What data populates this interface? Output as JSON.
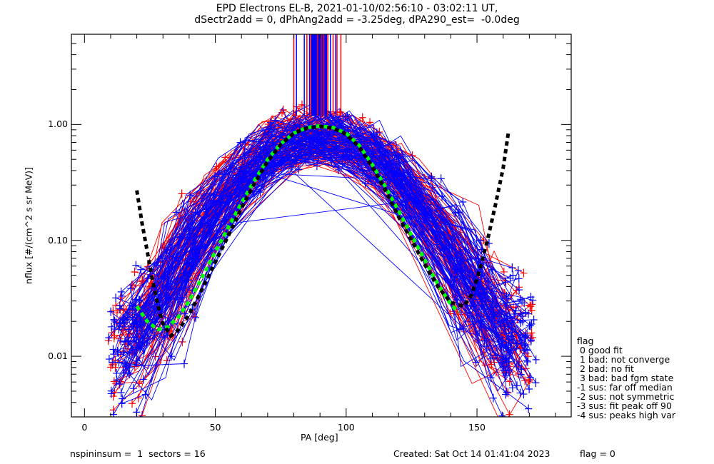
{
  "title_line1": "EPD Electrons EL-B, 2021-01-10/02:56:10 - 03:02:11 UT,",
  "title_line2": "dSectr2add = 0, dPhAng2add = -3.25deg, dPA290_est=  -0.0deg",
  "footer": {
    "left": "nspininsum =  1  sectors = 16",
    "right": "Created: Sat Oct 14 01:41:04 2023",
    "flag_value": "flag = 0"
  },
  "legend": {
    "title": "flag",
    "entries": [
      " 0 good fit",
      " 1 bad: not converge",
      " 2 bad: no fit",
      " 3 bad: bad fgm state",
      "-1 sus: far off median",
      "-2 sus: not symmetric",
      "-3 sus: fit peak off 90",
      "-4 sus: peaks high var"
    ]
  },
  "colors": {
    "red_traces": "#ff0000",
    "blue_traces": "#0000ff",
    "green_fit": "#00ff00",
    "black_fit": "#000000",
    "axes": "#000000"
  },
  "chart_data": {
    "type": "line",
    "title": "EPD Electrons EL-B, 2021-01-10/02:56:10 - 03:02:11 UT, dSectr2add = 0, dPhAng2add = -3.25deg, dPA290_est=  -0.0deg",
    "xlabel": "PA [deg]",
    "ylabel": "nflux [#/(cm^2 s sr MeV)]",
    "xlim": [
      -5,
      186
    ],
    "ylim": [
      0.003,
      6.0
    ],
    "yscale": "log",
    "x_ticks": [
      0,
      50,
      100,
      150
    ],
    "x_tick_labels": [
      "0",
      "50",
      "100",
      "150"
    ],
    "x_minor_step": 10,
    "y_ticks": [
      0.01,
      0.1,
      1.0
    ],
    "y_tick_labels": [
      "0.01",
      "0.10",
      "1.00"
    ],
    "grid": false,
    "series": [
      {
        "name": "green-fit",
        "style": "dashed-thick",
        "x": [
          20,
          24,
          28,
          32,
          36,
          40,
          45,
          50,
          55,
          60,
          65,
          70,
          75,
          80,
          85,
          90,
          95,
          100,
          105,
          110,
          115,
          120,
          125,
          130,
          135,
          140,
          143
        ],
        "y": [
          0.027,
          0.02,
          0.017,
          0.018,
          0.022,
          0.03,
          0.048,
          0.08,
          0.13,
          0.21,
          0.33,
          0.5,
          0.68,
          0.84,
          0.94,
          0.97,
          0.94,
          0.84,
          0.66,
          0.45,
          0.29,
          0.18,
          0.11,
          0.068,
          0.042,
          0.028,
          0.024
        ]
      },
      {
        "name": "black-fit",
        "style": "dashed-thick",
        "x": [
          20,
          22,
          24,
          26,
          28,
          30,
          33,
          36,
          40,
          45,
          50,
          55,
          60,
          65,
          70,
          75,
          80,
          85,
          90,
          95,
          100,
          105,
          110,
          115,
          120,
          125,
          130,
          135,
          140,
          145,
          148,
          151,
          154,
          157,
          160,
          162
        ],
        "y": [
          0.27,
          0.14,
          0.08,
          0.045,
          0.028,
          0.019,
          0.015,
          0.017,
          0.023,
          0.038,
          0.065,
          0.11,
          0.19,
          0.31,
          0.48,
          0.67,
          0.84,
          0.93,
          0.96,
          0.93,
          0.82,
          0.64,
          0.43,
          0.27,
          0.16,
          0.1,
          0.062,
          0.04,
          0.029,
          0.027,
          0.034,
          0.055,
          0.1,
          0.2,
          0.42,
          0.85
        ]
      }
    ],
    "trace_groups": [
      {
        "name": "red-traces",
        "color": "red",
        "count": 90,
        "peak_level": 0.88,
        "description": "per-spin pitch-angle distributions (red)"
      },
      {
        "name": "blue-traces",
        "color": "blue",
        "count": 110,
        "peak_level": 0.85,
        "description": "per-spin pitch-angle distributions (blue)"
      }
    ],
    "peak_markers": {
      "description": "vertical lines marking per-spin peak pitch angles",
      "red_x": [
        80,
        85,
        86.5,
        89,
        90.5,
        91.5,
        93,
        95,
        96.5,
        98
      ],
      "blue_x": [
        81,
        84,
        86,
        87,
        87.5,
        88,
        88.5,
        89.5,
        90,
        92,
        92.5,
        94,
        96
      ],
      "y_from": 1.18,
      "y_to": 6.0
    }
  }
}
